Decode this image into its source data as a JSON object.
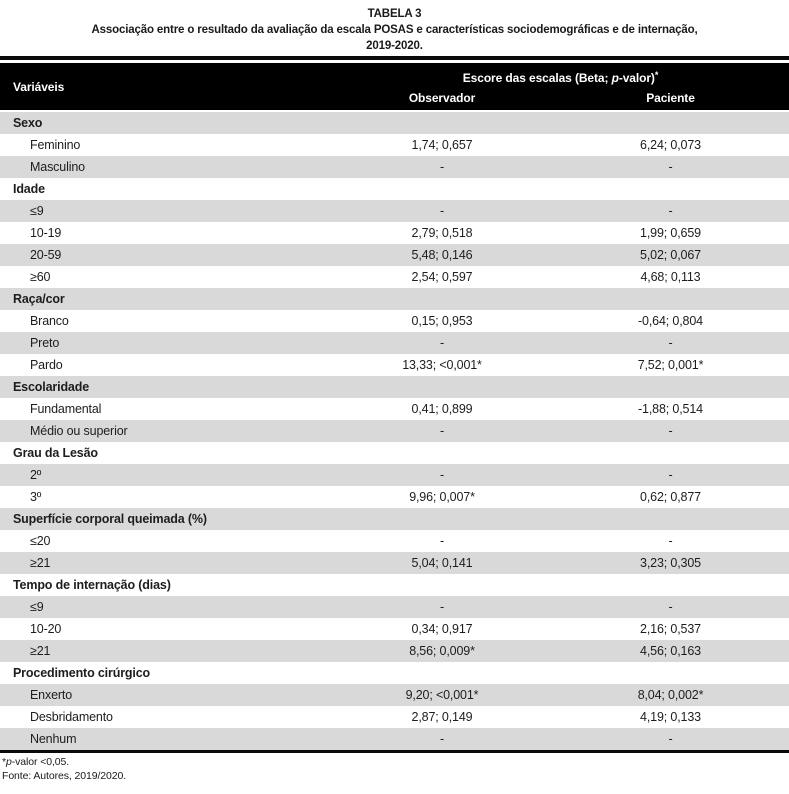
{
  "title": {
    "label": "TABELA 3",
    "caption_line1": "Associação entre o resultado da avaliação da escala POSAS e características sociodemográficas e de internação,",
    "caption_line2": "2019-2020."
  },
  "header": {
    "variables": "Variáveis",
    "score_prefix": "Escore das escalas (Beta; ",
    "score_italic": "p",
    "score_suffix": "-valor)",
    "score_star": "*",
    "col_observador": "Observador",
    "col_paciente": "Paciente"
  },
  "rows": [
    {
      "type": "group",
      "label": "Sexo",
      "observador": "",
      "paciente": ""
    },
    {
      "type": "item",
      "label": "Feminino",
      "observador": "1,74; 0,657",
      "paciente": "6,24; 0,073"
    },
    {
      "type": "item",
      "label": "Masculino",
      "observador": "-",
      "paciente": "-"
    },
    {
      "type": "group",
      "label": "Idade",
      "observador": "",
      "paciente": ""
    },
    {
      "type": "item",
      "label": "≤9",
      "observador": "-",
      "paciente": "-"
    },
    {
      "type": "item",
      "label": "10-19",
      "observador": "2,79; 0,518",
      "paciente": "1,99; 0,659"
    },
    {
      "type": "item",
      "label": "20-59",
      "observador": "5,48; 0,146",
      "paciente": "5,02; 0,067"
    },
    {
      "type": "item",
      "label": "≥60",
      "observador": "2,54; 0,597",
      "paciente": "4,68; 0,113"
    },
    {
      "type": "group",
      "label": "Raça/cor",
      "observador": "",
      "paciente": ""
    },
    {
      "type": "item",
      "label": "Branco",
      "observador": "0,15; 0,953",
      "paciente": "-0,64; 0,804"
    },
    {
      "type": "item",
      "label": "Preto",
      "observador": "-",
      "paciente": "-"
    },
    {
      "type": "item",
      "label": "Pardo",
      "observador": "13,33; <0,001*",
      "paciente": "7,52; 0,001*"
    },
    {
      "type": "group",
      "label": "Escolaridade",
      "observador": "",
      "paciente": ""
    },
    {
      "type": "item",
      "label": "Fundamental",
      "observador": "0,41; 0,899",
      "paciente": "-1,88; 0,514"
    },
    {
      "type": "item",
      "label": "Médio ou superior",
      "observador": "-",
      "paciente": "-"
    },
    {
      "type": "group",
      "label": "Grau da Lesão",
      "observador": "",
      "paciente": ""
    },
    {
      "type": "item",
      "label": "2º",
      "observador": "-",
      "paciente": "-"
    },
    {
      "type": "item",
      "label": "3º",
      "observador": "9,96; 0,007*",
      "paciente": "0,62; 0,877"
    },
    {
      "type": "group",
      "label": "Superfície corporal queimada (%)",
      "observador": "",
      "paciente": ""
    },
    {
      "type": "item",
      "label": "≤20",
      "observador": "-",
      "paciente": "-"
    },
    {
      "type": "item",
      "label": "≥21",
      "observador": "5,04; 0,141",
      "paciente": "3,23; 0,305"
    },
    {
      "type": "group",
      "label": "Tempo de internação (dias)",
      "observador": "",
      "paciente": ""
    },
    {
      "type": "item",
      "label": "≤9",
      "observador": "-",
      "paciente": "-"
    },
    {
      "type": "item",
      "label": "10-20",
      "observador": "0,34; 0,917",
      "paciente": "2,16; 0,537"
    },
    {
      "type": "item",
      "label": "≥21",
      "observador": "8,56; 0,009*",
      "paciente": "4,56; 0,163"
    },
    {
      "type": "group",
      "label": "Procedimento cirúrgico",
      "observador": "",
      "paciente": ""
    },
    {
      "type": "item",
      "label": "Enxerto",
      "observador": "9,20; <0,001*",
      "paciente": "8,04; 0,002*"
    },
    {
      "type": "item",
      "label": "Desbridamento",
      "observador": "2,87; 0,149",
      "paciente": "4,19; 0,133"
    },
    {
      "type": "item",
      "label": "Nenhum",
      "observador": "-",
      "paciente": "-"
    }
  ],
  "footnotes": {
    "star": "*",
    "pvalor_italic": "p",
    "pvalor_rest": "-valor <0,05.",
    "fonte": "Fonte: Autores, 2019/2020."
  },
  "colors": {
    "header_bg": "#000000",
    "header_text": "#ffffff",
    "row_alt_bg": "#d9d9d9",
    "rule": "#0a0a0a",
    "text": "#1d1d1d"
  }
}
